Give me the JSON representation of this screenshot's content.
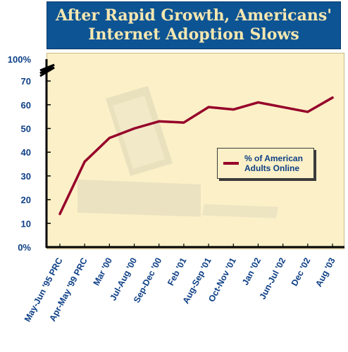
{
  "header": {
    "title_line1": "After Rapid Growth, Americans'",
    "title_line2": "Internet Adoption Slows"
  },
  "colors": {
    "title_bg": "#0d5494",
    "title_text": "#f6e7b0",
    "plot_bg": "#fbf0c7",
    "series_line": "#96002a",
    "label_text": "#0d3f86"
  },
  "chart_data": {
    "type": "line",
    "title": "After Rapid Growth, Americans' Internet Adoption Slows",
    "xlabel": "",
    "ylabel": "",
    "categories": [
      "May-Jun '95 PRC",
      "Apr-May '99 PRC",
      "Mar '00",
      "Jul-Aug '00",
      "Sep-Dec '00",
      "Feb '01",
      "Aug-Sep '01",
      "Oct-Nov '01",
      "Jan '02",
      "Jun-Jul '02",
      "Dec '02",
      "Aug '03"
    ],
    "series": [
      {
        "name": "% of American Adults Online",
        "values": [
          14,
          36,
          46,
          50,
          53,
          52.5,
          59,
          58,
          61,
          59,
          57,
          63
        ]
      }
    ],
    "y_ticks": [
      0,
      10,
      20,
      30,
      40,
      50,
      60,
      70
    ],
    "y_tick_labels": [
      "0%",
      "10",
      "20",
      "30",
      "40",
      "50",
      "60",
      "70"
    ],
    "y_top_label": "100%",
    "ylim": [
      0,
      70
    ],
    "axis_break": true,
    "grid": false,
    "legend_position": "right",
    "legend_label_line1": "% of American",
    "legend_label_line2": "Adults Online"
  }
}
